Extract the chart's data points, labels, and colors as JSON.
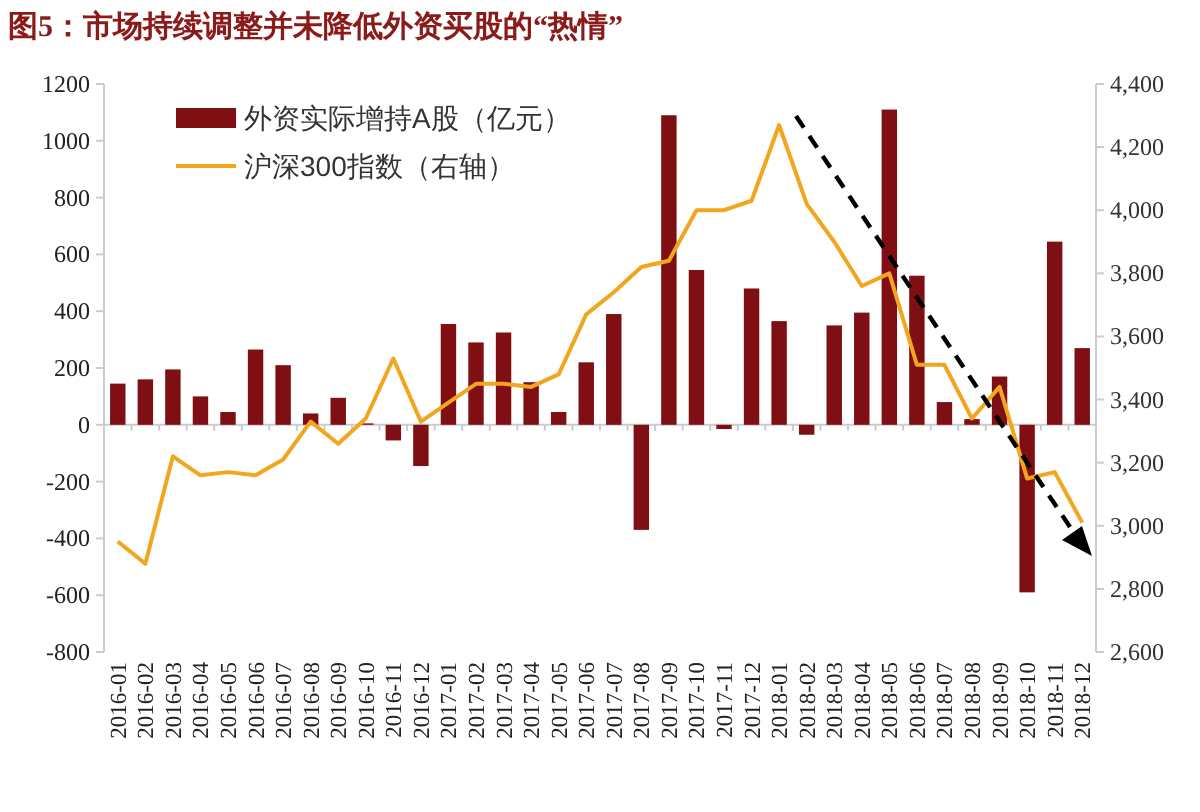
{
  "chart_data": {
    "type": "bar",
    "title": "图5：市场持续调整并未降低外资买股的“热情”",
    "categories": [
      "2016-01",
      "2016-02",
      "2016-03",
      "2016-04",
      "2016-05",
      "2016-06",
      "2016-07",
      "2016-08",
      "2016-09",
      "2016-10",
      "2016-11",
      "2016-12",
      "2017-01",
      "2017-02",
      "2017-03",
      "2017-04",
      "2017-05",
      "2017-06",
      "2017-07",
      "2017-08",
      "2017-09",
      "2017-10",
      "2017-11",
      "2017-12",
      "2018-01",
      "2018-02",
      "2018-03",
      "2018-04",
      "2018-05",
      "2018-06",
      "2018-07",
      "2018-08",
      "2018-09",
      "2018-10",
      "2018-11",
      "2018-12"
    ],
    "series": [
      {
        "name": "外资实际增持A股（亿元）",
        "color": "#7f0f12",
        "values": [
          145,
          160,
          195,
          100,
          45,
          265,
          210,
          40,
          95,
          5,
          -55,
          -145,
          355,
          290,
          325,
          150,
          45,
          220,
          390,
          -370,
          1090,
          545,
          -15,
          480,
          365,
          -35,
          350,
          395,
          1110,
          525,
          80,
          20,
          170,
          -590,
          645,
          270
        ]
      },
      {
        "name": "沪深300指数（右轴）",
        "type": "line",
        "axis": "y2",
        "color": "#f2a61f",
        "values": [
          2950,
          2880,
          3220,
          3160,
          3170,
          3160,
          3210,
          3330,
          3260,
          3340,
          3530,
          3330,
          3390,
          3450,
          3450,
          3440,
          3480,
          3670,
          3740,
          3820,
          3840,
          4000,
          4000,
          4030,
          4270,
          4020,
          3900,
          3760,
          3800,
          3510,
          3510,
          3340,
          3440,
          3150,
          3170,
          3010
        ]
      }
    ],
    "ylim": [
      -800,
      1200
    ],
    "yticks": [
      -800,
      -600,
      -400,
      -200,
      0,
      200,
      400,
      600,
      800,
      1000,
      1200
    ],
    "y2lim": [
      2600,
      4400
    ],
    "y2ticks": [
      {
        "value": 2600,
        "label": "2,600"
      },
      {
        "value": 2800,
        "label": "2,800"
      },
      {
        "value": 3000,
        "label": "3,000"
      },
      {
        "value": 3200,
        "label": "3,200"
      },
      {
        "value": 3400,
        "label": "3,400"
      },
      {
        "value": 3600,
        "label": "3,600"
      },
      {
        "value": 3800,
        "label": "3,800"
      },
      {
        "value": 4000,
        "label": "4,000"
      },
      {
        "value": 4200,
        "label": "4,200"
      },
      {
        "value": 4400,
        "label": "4,400"
      }
    ],
    "legend": "top left"
  }
}
